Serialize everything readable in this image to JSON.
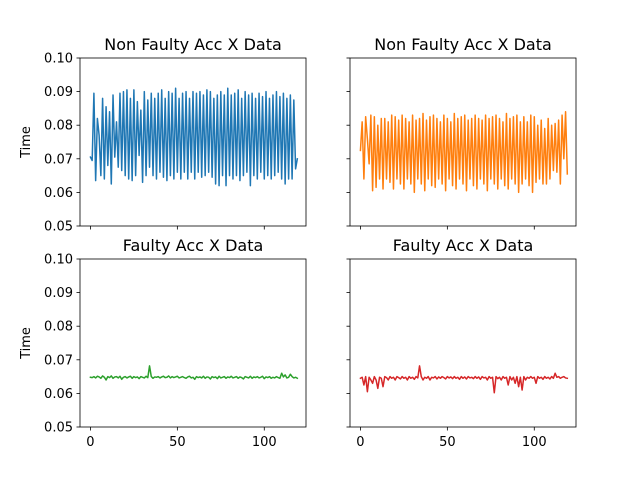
{
  "chart_data": [
    {
      "type": "line",
      "title": "Non Faulty Acc X Data",
      "xlabel": "",
      "ylabel": "Time",
      "xlim": [
        -6,
        124
      ],
      "ylim": [
        0.05,
        0.1
      ],
      "xticks": [
        0,
        50,
        100
      ],
      "yticks": [
        "0.05",
        "0.06",
        "0.07",
        "0.08",
        "0.09",
        "0.10"
      ],
      "show_xticklabels": false,
      "show_yticklabels": true,
      "series": [
        {
          "color": "#1f77b4",
          "y": [
            0.0705,
            0.0695,
            0.0895,
            0.0635,
            0.082,
            0.077,
            0.065,
            0.088,
            0.064,
            0.0855,
            0.068,
            0.084,
            0.0625,
            0.089,
            0.0705,
            0.081,
            0.0675,
            0.0895,
            0.0665,
            0.09,
            0.065,
            0.0905,
            0.064,
            0.088,
            0.0635,
            0.0905,
            0.065,
            0.087,
            0.071,
            0.0845,
            0.063,
            0.09,
            0.065,
            0.0875,
            0.0675,
            0.0895,
            0.065,
            0.088,
            0.064,
            0.0895,
            0.066,
            0.0905,
            0.0645,
            0.088,
            0.0635,
            0.09,
            0.065,
            0.0895,
            0.064,
            0.091,
            0.066,
            0.088,
            0.064,
            0.0895,
            0.066,
            0.09,
            0.064,
            0.088,
            0.066,
            0.09,
            0.064,
            0.0895,
            0.066,
            0.09,
            0.0645,
            0.089,
            0.065,
            0.0905,
            0.066,
            0.09,
            0.0645,
            0.088,
            0.0625,
            0.089,
            0.062,
            0.09,
            0.065,
            0.089,
            0.062,
            0.091,
            0.065,
            0.089,
            0.064,
            0.0895,
            0.065,
            0.0905,
            0.0635,
            0.088,
            0.065,
            0.09,
            0.066,
            0.089,
            0.062,
            0.0895,
            0.065,
            0.088,
            0.064,
            0.0895,
            0.066,
            0.0885,
            0.064,
            0.09,
            0.065,
            0.088,
            0.064,
            0.089,
            0.065,
            0.09,
            0.066,
            0.0885,
            0.064,
            0.0895,
            0.0625,
            0.088,
            0.064,
            0.089,
            0.064,
            0.0875,
            0.067,
            0.07
          ]
        }
      ]
    },
    {
      "type": "line",
      "title": "Non Faulty Acc X Data",
      "xlabel": "",
      "ylabel": "",
      "xlim": [
        -6,
        124
      ],
      "ylim": [
        0.05,
        0.1
      ],
      "xticks": [
        0,
        50,
        100
      ],
      "yticks": [
        "0.05",
        "0.06",
        "0.07",
        "0.08",
        "0.09",
        "0.10"
      ],
      "show_xticklabels": false,
      "show_yticklabels": false,
      "series": [
        {
          "color": "#ff7f0e",
          "y": [
            0.0725,
            0.081,
            0.064,
            0.0825,
            0.076,
            0.0685,
            0.083,
            0.0605,
            0.0825,
            0.0615,
            0.08,
            0.064,
            0.082,
            0.061,
            0.082,
            0.064,
            0.081,
            0.063,
            0.083,
            0.061,
            0.0825,
            0.064,
            0.0815,
            0.0625,
            0.083,
            0.061,
            0.082,
            0.064,
            0.081,
            0.0625,
            0.083,
            0.06,
            0.0815,
            0.064,
            0.082,
            0.0625,
            0.0835,
            0.0605,
            0.0815,
            0.064,
            0.0825,
            0.062,
            0.083,
            0.0615,
            0.082,
            0.064,
            0.081,
            0.0625,
            0.083,
            0.0605,
            0.082,
            0.064,
            0.081,
            0.062,
            0.0835,
            0.061,
            0.082,
            0.064,
            0.0825,
            0.0625,
            0.083,
            0.0605,
            0.0815,
            0.064,
            0.082,
            0.062,
            0.083,
            0.061,
            0.082,
            0.064,
            0.0815,
            0.0625,
            0.083,
            0.0605,
            0.082,
            0.064,
            0.0825,
            0.0625,
            0.083,
            0.061,
            0.082,
            0.064,
            0.081,
            0.062,
            0.0835,
            0.061,
            0.082,
            0.064,
            0.0825,
            0.0625,
            0.083,
            0.06,
            0.081,
            0.0625,
            0.0825,
            0.064,
            0.081,
            0.062,
            0.083,
            0.06,
            0.0825,
            0.063,
            0.08,
            0.064,
            0.0815,
            0.0625,
            0.079,
            0.0625,
            0.082,
            0.064,
            0.08,
            0.0665,
            0.0805,
            0.066,
            0.0815,
            0.0625,
            0.083,
            0.07,
            0.084,
            0.0655
          ]
        }
      ]
    },
    {
      "type": "line",
      "title": "Faulty Acc X Data",
      "xlabel": "",
      "ylabel": "Time",
      "xlim": [
        -6,
        124
      ],
      "ylim": [
        0.05,
        0.1
      ],
      "xticks": [
        0,
        50,
        100
      ],
      "yticks": [
        "0.05",
        "0.06",
        "0.07",
        "0.08",
        "0.09",
        "0.10"
      ],
      "show_xticklabels": true,
      "show_yticklabels": true,
      "series": [
        {
          "color": "#2ca02c",
          "y": [
            0.0648,
            0.0647,
            0.065,
            0.0646,
            0.0651,
            0.0649,
            0.0645,
            0.0652,
            0.0648,
            0.064,
            0.065,
            0.0647,
            0.0652,
            0.0645,
            0.0649,
            0.065,
            0.0646,
            0.0651,
            0.0642,
            0.0648,
            0.065,
            0.0646,
            0.0649,
            0.0651,
            0.0645,
            0.065,
            0.0647,
            0.0649,
            0.0644,
            0.065,
            0.0648,
            0.0646,
            0.0651,
            0.0647,
            0.0682,
            0.065,
            0.0645,
            0.0649,
            0.0648,
            0.065,
            0.0646,
            0.0649,
            0.0651,
            0.0647,
            0.0648,
            0.0652,
            0.0646,
            0.065,
            0.0647,
            0.0649,
            0.0651,
            0.0646,
            0.0648,
            0.065,
            0.0647,
            0.0645,
            0.0649,
            0.0651,
            0.0646,
            0.0648,
            0.0642,
            0.065,
            0.0647,
            0.0649,
            0.0646,
            0.0651,
            0.0645,
            0.0649,
            0.0648,
            0.0643,
            0.065,
            0.0647,
            0.0649,
            0.0644,
            0.0651,
            0.0646,
            0.0648,
            0.065,
            0.0645,
            0.0649,
            0.0647,
            0.0651,
            0.0646,
            0.0648,
            0.065,
            0.0645,
            0.0649,
            0.0647,
            0.0643,
            0.065,
            0.0648,
            0.0646,
            0.0651,
            0.0645,
            0.0649,
            0.0647,
            0.065,
            0.0646,
            0.0648,
            0.0651,
            0.0644,
            0.0649,
            0.0647,
            0.065,
            0.0645,
            0.0648,
            0.0646,
            0.065,
            0.0647,
            0.0645,
            0.066,
            0.0649,
            0.0655,
            0.0646,
            0.0648,
            0.0657,
            0.065,
            0.0646,
            0.0648,
            0.0645
          ]
        }
      ]
    },
    {
      "type": "line",
      "title": "Faulty Acc X Data",
      "xlabel": "",
      "ylabel": "",
      "xlim": [
        -6,
        124
      ],
      "ylim": [
        0.05,
        0.1
      ],
      "xticks": [
        0,
        50,
        100
      ],
      "yticks": [
        "0.05",
        "0.06",
        "0.07",
        "0.08",
        "0.09",
        "0.10"
      ],
      "show_xticklabels": true,
      "show_yticklabels": false,
      "series": [
        {
          "color": "#d62728",
          "y": [
            0.0645,
            0.0648,
            0.0625,
            0.065,
            0.0605,
            0.0648,
            0.064,
            0.063,
            0.065,
            0.064,
            0.0615,
            0.0648,
            0.0645,
            0.062,
            0.065,
            0.0647,
            0.064,
            0.065,
            0.0645,
            0.0648,
            0.064,
            0.065,
            0.0647,
            0.0643,
            0.065,
            0.0645,
            0.0648,
            0.064,
            0.065,
            0.0645,
            0.0648,
            0.0642,
            0.065,
            0.0646,
            0.0682,
            0.065,
            0.064,
            0.0648,
            0.0645,
            0.065,
            0.064,
            0.0648,
            0.0646,
            0.065,
            0.0643,
            0.0649,
            0.0645,
            0.065,
            0.0647,
            0.0643,
            0.065,
            0.0646,
            0.0649,
            0.0644,
            0.065,
            0.0645,
            0.0648,
            0.0642,
            0.065,
            0.0645,
            0.0649,
            0.0643,
            0.065,
            0.0646,
            0.0648,
            0.0644,
            0.065,
            0.0645,
            0.0649,
            0.0642,
            0.065,
            0.0646,
            0.0648,
            0.064,
            0.065,
            0.0645,
            0.0648,
            0.0602,
            0.065,
            0.0644,
            0.0648,
            0.064,
            0.065,
            0.0645,
            0.0648,
            0.0625,
            0.065,
            0.064,
            0.0648,
            0.063,
            0.065,
            0.062,
            0.0648,
            0.061,
            0.065,
            0.064,
            0.0648,
            0.0645,
            0.065,
            0.0645,
            0.0648,
            0.063,
            0.065,
            0.0645,
            0.0648,
            0.0642,
            0.065,
            0.0645,
            0.0648,
            0.0643,
            0.065,
            0.0645,
            0.066,
            0.0648,
            0.065,
            0.0645,
            0.0648,
            0.065,
            0.0646,
            0.0645
          ]
        }
      ]
    }
  ]
}
